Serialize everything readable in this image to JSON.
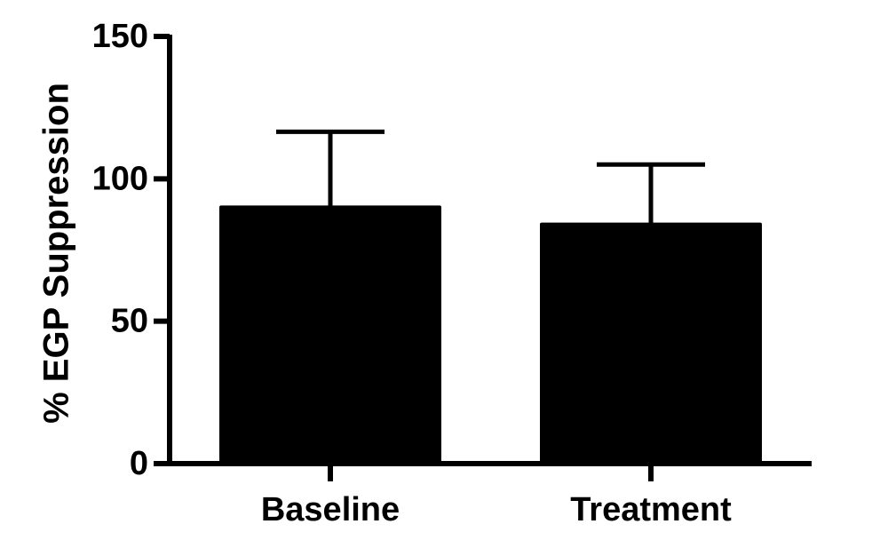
{
  "chart_data": {
    "type": "bar",
    "title": "",
    "xlabel": "",
    "ylabel": "% EGP Suppression",
    "categories": [
      "Baseline",
      "Treatment"
    ],
    "values": [
      90,
      84
    ],
    "error_upper": [
      26.5,
      21
    ],
    "ylim": [
      0,
      150
    ],
    "yticks": [
      0,
      50,
      100,
      150
    ],
    "ytick_labels": [
      "0",
      "50",
      "100",
      "150"
    ],
    "grid": false,
    "legend": "none",
    "bar_color": "#000000",
    "axis_color": "#000000"
  }
}
